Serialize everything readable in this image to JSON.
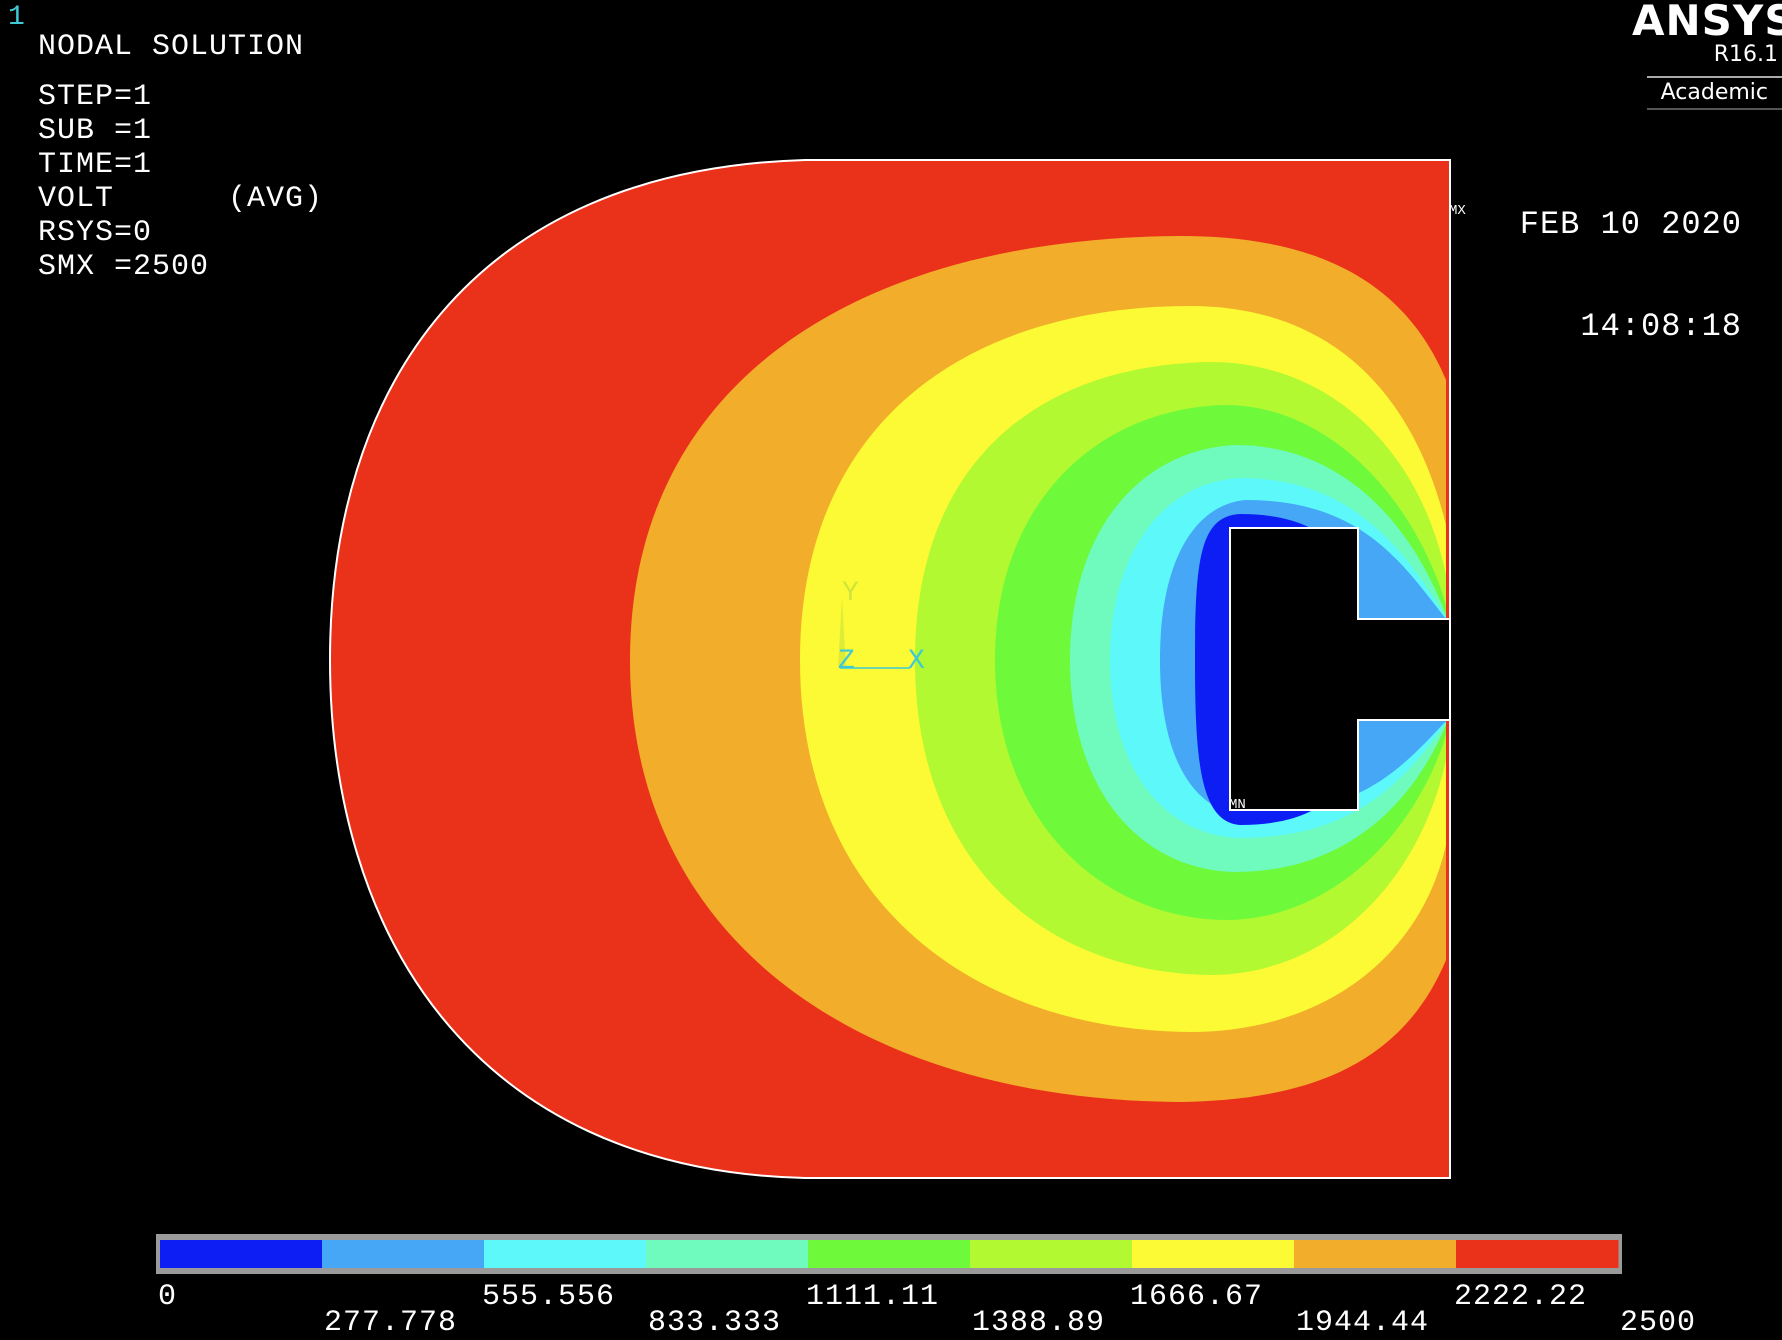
{
  "window_number": "1",
  "info_lines": [
    "NODAL SOLUTION",
    "",
    "STEP=1",
    "SUB =1",
    "TIME=1",
    "VOLT      (AVG)",
    "RSYS=0",
    "SMX =2500"
  ],
  "brand": {
    "name": "ANSYS",
    "version": "R16.1",
    "edition": "Academic"
  },
  "date": "FEB 10 2020",
  "time": "14:08:18",
  "markers": {
    "max": "MX",
    "min": "MN"
  },
  "triad": {
    "y": "Y",
    "z": "Z",
    "x": "X"
  },
  "legend": {
    "colors": [
      "#0d1ef5",
      "#45a7f5",
      "#5cf8fa",
      "#6ffbbd",
      "#6ef93b",
      "#b2f932",
      "#fbfa35",
      "#f2ae2a",
      "#ea321b"
    ],
    "upper_labels": [
      "0",
      "555.556",
      "1111.11",
      "1666.67",
      "2222.22"
    ],
    "lower_labels": [
      "277.778",
      "833.333",
      "1388.89",
      "1944.44",
      "2500"
    ]
  },
  "colors": {
    "outline": "#ffffff",
    "triad": "#3fc9d4",
    "triad_y": "#cfe53a"
  }
}
